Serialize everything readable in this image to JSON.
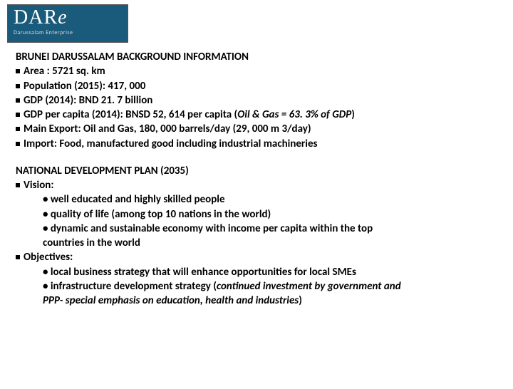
{
  "logo": {
    "main": "DAR",
    "e": "e",
    "sub": "Darussalam Enterprise"
  },
  "section1": {
    "title": "BRUNEI DARUSSALAM BACKGROUND INFORMATION",
    "items": [
      " Area : 5721 sq. km",
      " Population (2015): 417, 000",
      "GDP (2014): BND 21. 7 billion",
      " GDP per capita (2014): BNSD 52, 614 per capita (",
      " Main Export: Oil and Gas, 180, 000 barrels/day (29, 000 m 3/day)",
      " Import: Food, manufactured good including industrial machineries"
    ],
    "gdp_italic": "Oil & Gas = 63. 3% of GDP",
    "gdp_close": ")"
  },
  "section2": {
    "title": "NATIONAL DEVELOPMENT PLAN (2035)",
    "vision_label": " Vision:",
    "vision": [
      "• well educated and highly skilled people",
      "• quality of life (among top 10 nations in the world)",
      "• dynamic and sustainable economy with income per capita within the top",
      "countries in the world"
    ],
    "objectives_label": " Objectives:",
    "objectives": [
      "• local business strategy that will enhance opportunities for local SMEs",
      "• infrastructure development strategy ("
    ],
    "obj_italic1": "continued investment by government and",
    "obj_italic2": "PPP- special emphasis on education, health and industries",
    "obj_close": ")"
  }
}
